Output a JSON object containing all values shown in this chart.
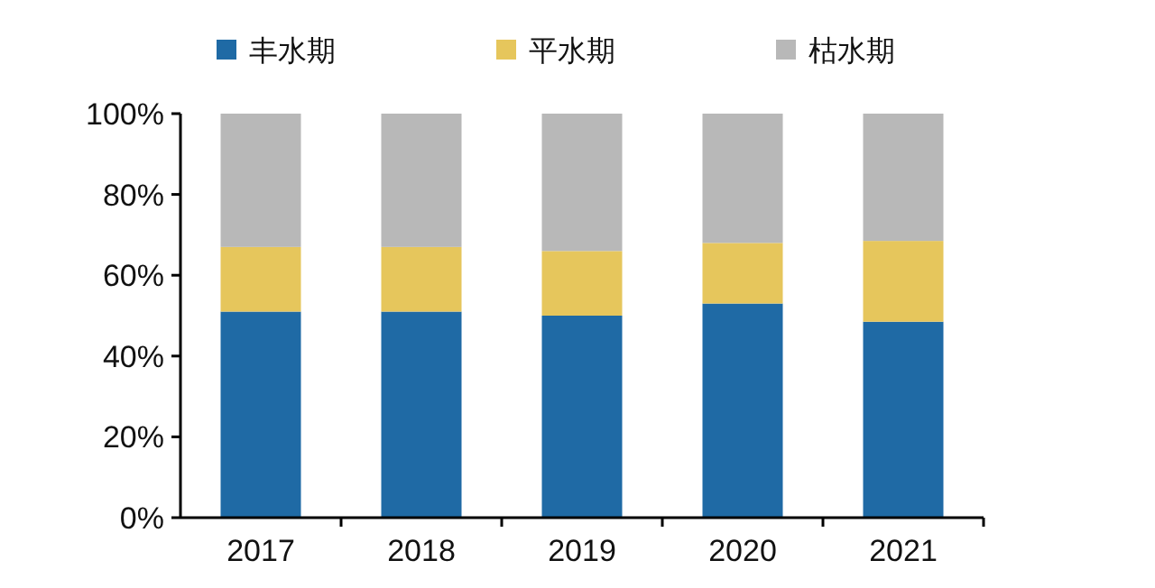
{
  "chart_data": {
    "type": "bar",
    "stacked": true,
    "categories": [
      "2017",
      "2018",
      "2019",
      "2020",
      "2021"
    ],
    "series": [
      {
        "name": "丰水期",
        "color": "#1f6aa5",
        "values": [
          51,
          51,
          50,
          53,
          48.5
        ]
      },
      {
        "name": "平水期",
        "color": "#e6c65c",
        "values": [
          16,
          16,
          16,
          15,
          20
        ]
      },
      {
        "name": "枯水期",
        "color": "#b8b8b8",
        "values": [
          33,
          33,
          34,
          32,
          31.5
        ]
      }
    ],
    "ylim": [
      0,
      100
    ],
    "yticks": [
      {
        "value": 0,
        "label": "0%"
      },
      {
        "value": 20,
        "label": "20%"
      },
      {
        "value": 40,
        "label": "40%"
      },
      {
        "value": 60,
        "label": "60%"
      },
      {
        "value": 80,
        "label": "80%"
      },
      {
        "value": 100,
        "label": "100%"
      }
    ],
    "legend": "top",
    "grid": false
  }
}
